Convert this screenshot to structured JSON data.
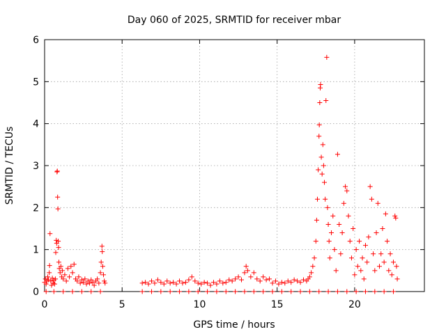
{
  "chart_data": {
    "type": "scatter",
    "title": "Day 060 of 2025, SRMTID for receiver mbar",
    "xlabel": "GPS time / hours",
    "ylabel": "SRMTID / TECUs",
    "xlim": [
      0,
      24.5
    ],
    "ylim": [
      0,
      6
    ],
    "xticks": [
      0,
      5,
      10,
      15,
      20
    ],
    "yticks": [
      0,
      1,
      2,
      3,
      4,
      5,
      6
    ],
    "grid": true,
    "marker": "+",
    "color": "#ff0000",
    "series": [
      {
        "name": "SRMTID",
        "points": [
          [
            0.0,
            0.22
          ],
          [
            0.05,
            0.3
          ],
          [
            0.1,
            0.18
          ],
          [
            0.15,
            0.25
          ],
          [
            0.2,
            0.35
          ],
          [
            0.25,
            0.28
          ],
          [
            0.3,
            0.45
          ],
          [
            0.32,
            0.62
          ],
          [
            0.35,
            1.38
          ],
          [
            0.4,
            0.25
          ],
          [
            0.45,
            0.15
          ],
          [
            0.5,
            0.32
          ],
          [
            0.55,
            0.2
          ],
          [
            0.6,
            0.27
          ],
          [
            0.65,
            0.18
          ],
          [
            0.7,
            0.3
          ],
          [
            0.72,
            0.93
          ],
          [
            0.75,
            1.22
          ],
          [
            0.78,
            1.15
          ],
          [
            0.8,
            2.85
          ],
          [
            0.82,
            2.87
          ],
          [
            0.84,
            2.25
          ],
          [
            0.86,
            1.97
          ],
          [
            0.88,
            1.2
          ],
          [
            0.9,
            1.05
          ],
          [
            0.92,
            0.7
          ],
          [
            0.95,
            0.55
          ],
          [
            1.0,
            0.45
          ],
          [
            1.05,
            0.6
          ],
          [
            1.1,
            0.35
          ],
          [
            1.15,
            0.5
          ],
          [
            1.2,
            0.3
          ],
          [
            1.3,
            0.4
          ],
          [
            1.4,
            0.25
          ],
          [
            1.5,
            0.55
          ],
          [
            1.6,
            0.35
          ],
          [
            1.7,
            0.6
          ],
          [
            1.8,
            0.45
          ],
          [
            1.9,
            0.65
          ],
          [
            2.0,
            0.3
          ],
          [
            2.1,
            0.25
          ],
          [
            2.2,
            0.35
          ],
          [
            2.3,
            0.2
          ],
          [
            2.4,
            0.28
          ],
          [
            2.5,
            0.22
          ],
          [
            2.6,
            0.3
          ],
          [
            2.7,
            0.18
          ],
          [
            2.8,
            0.25
          ],
          [
            2.9,
            0.2
          ],
          [
            3.0,
            0.28
          ],
          [
            3.1,
            0.22
          ],
          [
            3.2,
            0.15
          ],
          [
            3.3,
            0.25
          ],
          [
            3.4,
            0.3
          ],
          [
            3.5,
            0.2
          ],
          [
            3.6,
            0.45
          ],
          [
            3.65,
            0.7
          ],
          [
            3.7,
            1.08
          ],
          [
            3.72,
            0.95
          ],
          [
            3.75,
            0.6
          ],
          [
            3.8,
            0.4
          ],
          [
            3.85,
            0.25
          ],
          [
            3.9,
            0.2
          ],
          [
            6.3,
            0.2
          ],
          [
            6.5,
            0.22
          ],
          [
            6.7,
            0.18
          ],
          [
            6.9,
            0.25
          ],
          [
            7.1,
            0.2
          ],
          [
            7.3,
            0.28
          ],
          [
            7.5,
            0.22
          ],
          [
            7.7,
            0.18
          ],
          [
            7.9,
            0.25
          ],
          [
            8.1,
            0.2
          ],
          [
            8.3,
            0.22
          ],
          [
            8.5,
            0.18
          ],
          [
            8.7,
            0.25
          ],
          [
            8.9,
            0.2
          ],
          [
            9.1,
            0.22
          ],
          [
            9.3,
            0.28
          ],
          [
            9.5,
            0.35
          ],
          [
            9.7,
            0.25
          ],
          [
            9.9,
            0.2
          ],
          [
            10.1,
            0.18
          ],
          [
            10.3,
            0.22
          ],
          [
            10.5,
            0.2
          ],
          [
            10.7,
            0.15
          ],
          [
            10.9,
            0.22
          ],
          [
            11.1,
            0.18
          ],
          [
            11.3,
            0.25
          ],
          [
            11.5,
            0.2
          ],
          [
            11.7,
            0.22
          ],
          [
            11.9,
            0.28
          ],
          [
            12.1,
            0.25
          ],
          [
            12.3,
            0.3
          ],
          [
            12.5,
            0.35
          ],
          [
            12.7,
            0.28
          ],
          [
            12.9,
            0.45
          ],
          [
            13.0,
            0.6
          ],
          [
            13.1,
            0.5
          ],
          [
            13.3,
            0.35
          ],
          [
            13.5,
            0.45
          ],
          [
            13.7,
            0.3
          ],
          [
            13.9,
            0.25
          ],
          [
            14.1,
            0.35
          ],
          [
            14.3,
            0.28
          ],
          [
            14.5,
            0.3
          ],
          [
            14.7,
            0.2
          ],
          [
            14.9,
            0.25
          ],
          [
            15.1,
            0.18
          ],
          [
            15.3,
            0.22
          ],
          [
            15.5,
            0.2
          ],
          [
            15.7,
            0.25
          ],
          [
            15.9,
            0.22
          ],
          [
            16.1,
            0.28
          ],
          [
            16.3,
            0.25
          ],
          [
            16.5,
            0.22
          ],
          [
            16.7,
            0.28
          ],
          [
            16.9,
            0.25
          ],
          [
            17.0,
            0.3
          ],
          [
            17.1,
            0.35
          ],
          [
            17.2,
            0.45
          ],
          [
            17.3,
            0.6
          ],
          [
            17.4,
            0.8
          ],
          [
            17.5,
            1.2
          ],
          [
            17.55,
            1.7
          ],
          [
            17.6,
            2.2
          ],
          [
            17.65,
            2.9
          ],
          [
            17.7,
            3.7
          ],
          [
            17.72,
            3.97
          ],
          [
            17.75,
            4.5
          ],
          [
            17.78,
            4.85
          ],
          [
            17.8,
            4.93
          ],
          [
            17.85,
            3.2
          ],
          [
            17.9,
            2.8
          ],
          [
            17.95,
            3.5
          ],
          [
            18.0,
            3.0
          ],
          [
            18.05,
            2.6
          ],
          [
            18.1,
            2.2
          ],
          [
            18.15,
            4.55
          ],
          [
            18.2,
            5.58
          ],
          [
            18.25,
            2.0
          ],
          [
            18.3,
            1.6
          ],
          [
            18.35,
            1.2
          ],
          [
            18.4,
            0.8
          ],
          [
            18.5,
            1.4
          ],
          [
            18.6,
            1.8
          ],
          [
            18.7,
            1.0
          ],
          [
            18.8,
            0.5
          ],
          [
            18.9,
            3.27
          ],
          [
            19.0,
            1.6
          ],
          [
            19.1,
            0.9
          ],
          [
            19.2,
            1.4
          ],
          [
            19.3,
            2.1
          ],
          [
            19.4,
            2.5
          ],
          [
            19.5,
            2.4
          ],
          [
            19.6,
            1.8
          ],
          [
            19.7,
            1.2
          ],
          [
            19.8,
            0.8
          ],
          [
            19.9,
            1.5
          ],
          [
            20.0,
            0.4
          ],
          [
            20.1,
            1.0
          ],
          [
            20.2,
            0.6
          ],
          [
            20.3,
            1.2
          ],
          [
            20.4,
            0.5
          ],
          [
            20.5,
            0.8
          ],
          [
            20.6,
            0.3
          ],
          [
            20.7,
            1.1
          ],
          [
            20.8,
            0.7
          ],
          [
            20.9,
            1.3
          ],
          [
            21.0,
            2.5
          ],
          [
            21.1,
            2.2
          ],
          [
            21.2,
            0.9
          ],
          [
            21.3,
            0.5
          ],
          [
            21.4,
            1.4
          ],
          [
            21.5,
            2.1
          ],
          [
            21.6,
            0.6
          ],
          [
            21.7,
            0.9
          ],
          [
            21.8,
            1.5
          ],
          [
            21.9,
            0.7
          ],
          [
            22.0,
            1.85
          ],
          [
            22.1,
            1.2
          ],
          [
            22.2,
            0.5
          ],
          [
            22.3,
            0.9
          ],
          [
            22.4,
            0.4
          ],
          [
            22.5,
            0.7
          ],
          [
            22.6,
            1.8
          ],
          [
            22.65,
            1.75
          ],
          [
            22.7,
            0.6
          ],
          [
            22.75,
            0.3
          ],
          [
            0.1,
            0.0
          ],
          [
            0.6,
            0.0
          ],
          [
            1.2,
            0.0
          ],
          [
            1.8,
            0.0
          ],
          [
            2.4,
            0.0
          ],
          [
            3.0,
            0.0
          ],
          [
            3.6,
            0.0
          ],
          [
            6.3,
            0.0
          ],
          [
            6.9,
            0.0
          ],
          [
            7.5,
            0.0
          ],
          [
            8.1,
            0.0
          ],
          [
            8.7,
            0.0
          ],
          [
            9.3,
            0.0
          ],
          [
            9.9,
            0.0
          ],
          [
            10.5,
            0.0
          ],
          [
            11.1,
            0.0
          ],
          [
            11.7,
            0.0
          ],
          [
            12.3,
            0.0
          ],
          [
            12.9,
            0.0
          ],
          [
            13.5,
            0.0
          ],
          [
            14.1,
            0.0
          ],
          [
            14.7,
            0.0
          ],
          [
            15.3,
            0.0
          ],
          [
            15.9,
            0.0
          ],
          [
            16.5,
            0.0
          ],
          [
            17.1,
            0.0
          ],
          [
            17.7,
            0.0
          ],
          [
            18.3,
            0.0
          ],
          [
            18.9,
            0.0
          ],
          [
            19.5,
            0.0
          ],
          [
            20.1,
            0.0
          ],
          [
            20.7,
            0.0
          ],
          [
            21.3,
            0.0
          ],
          [
            21.9,
            0.0
          ],
          [
            22.5,
            0.0
          ]
        ]
      }
    ]
  }
}
